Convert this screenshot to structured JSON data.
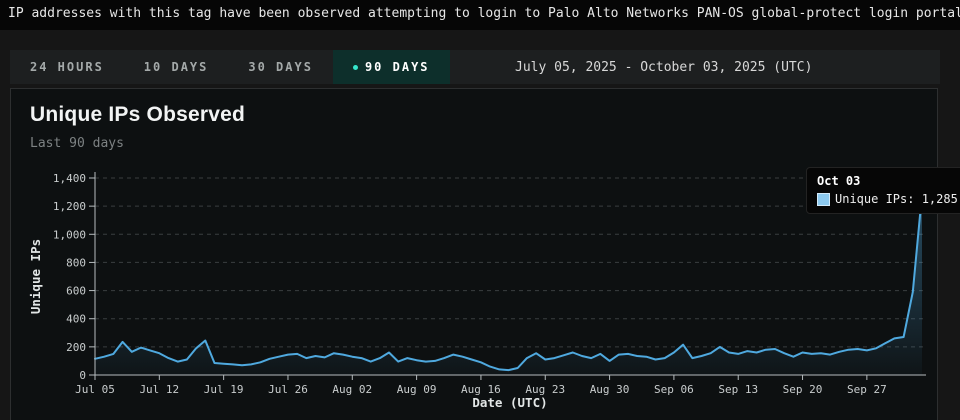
{
  "description": "IP addresses with this tag have been observed attempting to login to Palo Alto Networks PAN-OS global-protect login portal.",
  "time_range_tabs": {
    "tabs": [
      {
        "label": "24 HOURS",
        "active": false
      },
      {
        "label": "10 DAYS",
        "active": false
      },
      {
        "label": "30 DAYS",
        "active": false
      },
      {
        "label": "90 DAYS",
        "active": true
      }
    ],
    "active_dot_color": "#35E6CC",
    "active_tab_bg": "#0D2F2B",
    "date_range": "July 05, 2025 - October 03, 2025 (UTC)"
  },
  "chart_card": {
    "title": "Unique IPs Observed",
    "subtitle": "Last 90 days"
  },
  "tooltip": {
    "date": "Oct 03",
    "text": "Unique IPs: 1,285",
    "swatch_color": "#8CC9EF"
  },
  "chart_data": {
    "type": "area",
    "title": "Unique IPs Observed",
    "xlabel": "Date (UTC)",
    "ylabel": "Unique IPs",
    "ylim": [
      0,
      1400
    ],
    "y_ticks": [
      0,
      200,
      400,
      600,
      800,
      1000,
      1200,
      1400
    ],
    "y_tick_labels": [
      "0",
      "200",
      "400",
      "600",
      "800",
      "1,000",
      "1,200",
      "1,400"
    ],
    "x_tick_labels": [
      "Jul 05",
      "Jul 12",
      "Jul 19",
      "Jul 26",
      "Aug 02",
      "Aug 09",
      "Aug 16",
      "Aug 23",
      "Aug 30",
      "Sep 06",
      "Sep 13",
      "Sep 20",
      "Sep 27"
    ],
    "x_start": "Jul 05",
    "x_end": "Oct 03",
    "days_per_tick": 7,
    "grid": "dashed-horizontal",
    "legend_position": "none",
    "series": [
      {
        "name": "Unique IPs",
        "color": "#4FA9DF",
        "marker_color": "#9AD4F3",
        "values": [
          115,
          130,
          150,
          235,
          165,
          195,
          175,
          155,
          120,
          95,
          110,
          190,
          245,
          85,
          80,
          75,
          70,
          75,
          90,
          115,
          130,
          145,
          150,
          120,
          135,
          125,
          155,
          145,
          130,
          120,
          95,
          120,
          160,
          95,
          120,
          105,
          95,
          100,
          120,
          145,
          130,
          110,
          90,
          60,
          40,
          35,
          50,
          120,
          155,
          110,
          120,
          140,
          160,
          135,
          120,
          150,
          100,
          145,
          150,
          135,
          130,
          110,
          120,
          160,
          215,
          120,
          135,
          155,
          200,
          160,
          150,
          170,
          160,
          180,
          185,
          155,
          130,
          160,
          150,
          155,
          145,
          165,
          180,
          185,
          175,
          190,
          225,
          260,
          270,
          590,
          1285
        ]
      }
    ],
    "last_point": {
      "date": "Oct 03",
      "value": 1285
    }
  }
}
